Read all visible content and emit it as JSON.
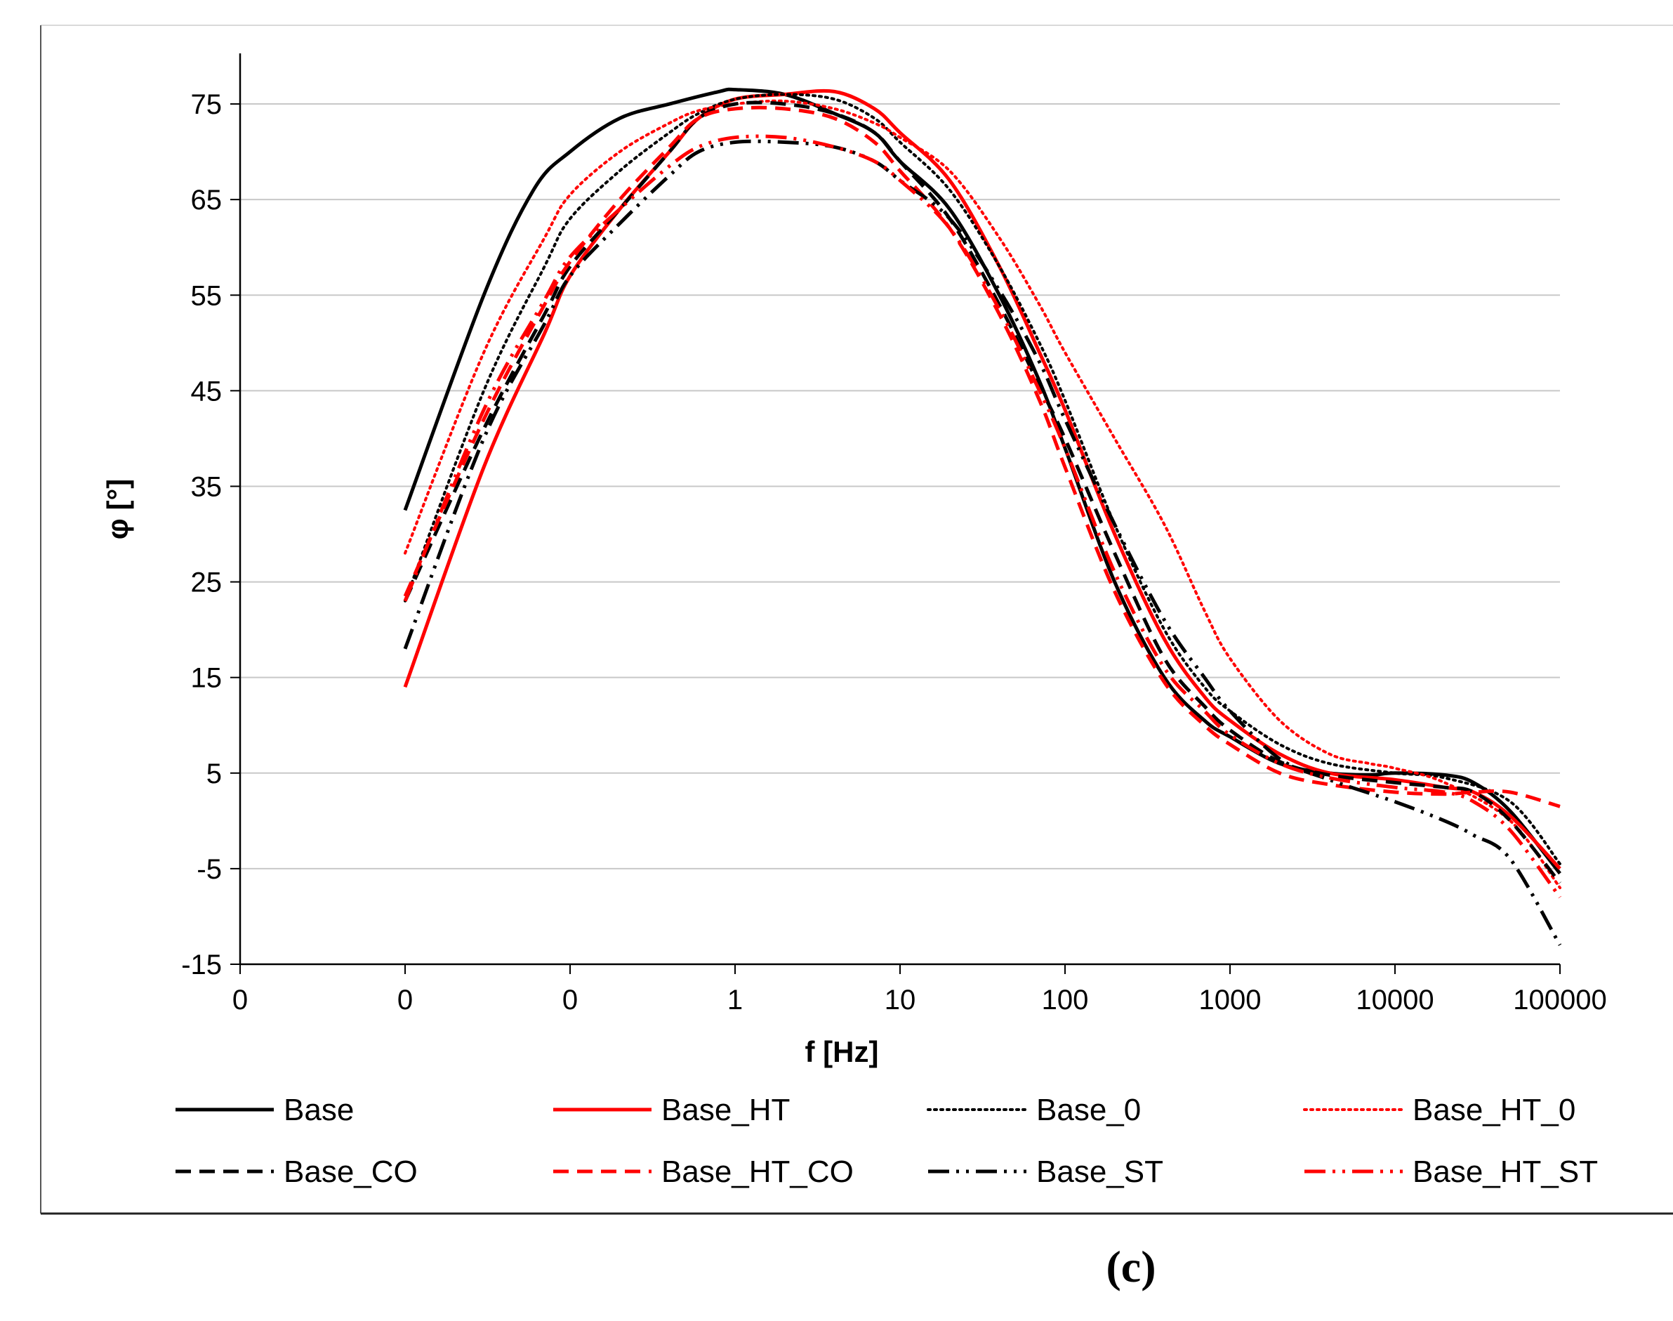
{
  "chart_data": {
    "type": "line",
    "title": "",
    "xlabel": "f [Hz]",
    "ylabel": "φ [°]",
    "x_scale": "log",
    "x_tick_labels": [
      "0",
      "0",
      "0",
      "1",
      "10",
      "100",
      "1000",
      "10000",
      "100000"
    ],
    "y_ticks": [
      75,
      65,
      55,
      45,
      35,
      25,
      15,
      5,
      -5,
      -15
    ],
    "ylim": [
      -15,
      80
    ],
    "grid": "horizontal",
    "legend_position": "bottom",
    "caption": "(c)",
    "series": [
      {
        "name": "Base",
        "color": "#000000",
        "style": "solid",
        "points": [
          [
            0.01,
            32.5
          ],
          [
            0.03,
            55
          ],
          [
            0.06,
            66
          ],
          [
            0.1,
            70
          ],
          [
            0.2,
            73.5
          ],
          [
            0.4,
            75
          ],
          [
            0.8,
            76.3
          ],
          [
            1,
            76.5
          ],
          [
            2,
            76
          ],
          [
            4,
            74
          ],
          [
            7,
            72
          ],
          [
            10,
            69
          ],
          [
            20,
            64
          ],
          [
            40,
            55
          ],
          [
            70,
            46
          ],
          [
            100,
            39
          ],
          [
            200,
            25
          ],
          [
            400,
            15
          ],
          [
            700,
            10.5
          ],
          [
            1000,
            8.8
          ],
          [
            2000,
            6
          ],
          [
            4000,
            5
          ],
          [
            7000,
            4.8
          ],
          [
            10000,
            5
          ],
          [
            20000,
            4.8
          ],
          [
            30000,
            4
          ],
          [
            50000,
            1
          ],
          [
            100000,
            -5.5
          ]
        ]
      },
      {
        "name": "Base_HT",
        "color": "#ff0000",
        "style": "solid",
        "points": [
          [
            0.01,
            14
          ],
          [
            0.03,
            37
          ],
          [
            0.07,
            51
          ],
          [
            0.1,
            57
          ],
          [
            0.2,
            64
          ],
          [
            0.4,
            70
          ],
          [
            0.6,
            73.5
          ],
          [
            1,
            75.5
          ],
          [
            2,
            76
          ],
          [
            4,
            76.3
          ],
          [
            7,
            74.5
          ],
          [
            10,
            72
          ],
          [
            20,
            67
          ],
          [
            40,
            58
          ],
          [
            70,
            49
          ],
          [
            100,
            43
          ],
          [
            200,
            30
          ],
          [
            400,
            19
          ],
          [
            700,
            13
          ],
          [
            1000,
            10.5
          ],
          [
            2000,
            7
          ],
          [
            4000,
            5
          ],
          [
            10000,
            4.3
          ],
          [
            20000,
            3.5
          ],
          [
            30000,
            3
          ],
          [
            50000,
            0.5
          ],
          [
            100000,
            -5
          ]
        ]
      },
      {
        "name": "Base_0",
        "color": "#000000",
        "style": "dotted",
        "points": [
          [
            0.01,
            23
          ],
          [
            0.03,
            45
          ],
          [
            0.07,
            58
          ],
          [
            0.1,
            63
          ],
          [
            0.2,
            68
          ],
          [
            0.4,
            72
          ],
          [
            0.6,
            74
          ],
          [
            1,
            75.5
          ],
          [
            2,
            76
          ],
          [
            4,
            75.5
          ],
          [
            7,
            73.5
          ],
          [
            10,
            71
          ],
          [
            20,
            66
          ],
          [
            40,
            58
          ],
          [
            70,
            50
          ],
          [
            100,
            44
          ],
          [
            200,
            31
          ],
          [
            400,
            20
          ],
          [
            700,
            14
          ],
          [
            1000,
            11.5
          ],
          [
            2000,
            8
          ],
          [
            4000,
            6
          ],
          [
            10000,
            5
          ],
          [
            20000,
            4.5
          ],
          [
            50000,
            2
          ],
          [
            100000,
            -4.5
          ]
        ]
      },
      {
        "name": "Base_HT_0",
        "color": "#ff0000",
        "style": "dotted",
        "points": [
          [
            0.01,
            28
          ],
          [
            0.03,
            49
          ],
          [
            0.07,
            61
          ],
          [
            0.1,
            65.5
          ],
          [
            0.2,
            70
          ],
          [
            0.4,
            73
          ],
          [
            0.6,
            74.3
          ],
          [
            1,
            75
          ],
          [
            2,
            75.3
          ],
          [
            4,
            74.5
          ],
          [
            7,
            73
          ],
          [
            10,
            71.5
          ],
          [
            20,
            68
          ],
          [
            40,
            61
          ],
          [
            70,
            54
          ],
          [
            100,
            49
          ],
          [
            200,
            40
          ],
          [
            400,
            31
          ],
          [
            700,
            22
          ],
          [
            1000,
            17
          ],
          [
            2000,
            10.5
          ],
          [
            4000,
            7
          ],
          [
            7000,
            6
          ],
          [
            10000,
            5.5
          ],
          [
            20000,
            4
          ],
          [
            50000,
            0
          ],
          [
            100000,
            -7
          ]
        ]
      },
      {
        "name": "Base_CO",
        "color": "#000000",
        "style": "dashed",
        "points": [
          [
            0.01,
            23
          ],
          [
            0.03,
            41
          ],
          [
            0.07,
            53
          ],
          [
            0.1,
            58
          ],
          [
            0.2,
            64
          ],
          [
            0.4,
            70
          ],
          [
            0.6,
            73.5
          ],
          [
            1,
            75
          ],
          [
            2,
            75
          ],
          [
            4,
            74
          ],
          [
            7,
            72
          ],
          [
            10,
            69
          ],
          [
            20,
            63
          ],
          [
            40,
            54
          ],
          [
            70,
            45.5
          ],
          [
            100,
            40
          ],
          [
            200,
            28
          ],
          [
            400,
            17
          ],
          [
            700,
            12
          ],
          [
            1000,
            9.5
          ],
          [
            2000,
            6.2
          ],
          [
            4000,
            4.8
          ],
          [
            10000,
            4
          ],
          [
            20000,
            3.5
          ],
          [
            30000,
            3
          ],
          [
            50000,
            0
          ],
          [
            100000,
            -6.5
          ]
        ]
      },
      {
        "name": "Base_HT_CO",
        "color": "#ff0000",
        "style": "dashed",
        "points": [
          [
            0.01,
            23.5
          ],
          [
            0.03,
            42
          ],
          [
            0.07,
            54
          ],
          [
            0.1,
            58.5
          ],
          [
            0.2,
            65
          ],
          [
            0.4,
            70.5
          ],
          [
            0.6,
            73.5
          ],
          [
            1,
            74.5
          ],
          [
            2,
            74.5
          ],
          [
            4,
            73.5
          ],
          [
            7,
            71
          ],
          [
            10,
            68
          ],
          [
            20,
            62
          ],
          [
            40,
            53
          ],
          [
            70,
            44
          ],
          [
            100,
            37
          ],
          [
            200,
            24
          ],
          [
            400,
            14.5
          ],
          [
            700,
            10
          ],
          [
            1000,
            8
          ],
          [
            2000,
            5
          ],
          [
            4000,
            3.8
          ],
          [
            10000,
            3
          ],
          [
            20000,
            2.8
          ],
          [
            30000,
            3
          ],
          [
            50000,
            3
          ],
          [
            100000,
            1.5
          ]
        ]
      },
      {
        "name": "Base_ST",
        "color": "#000000",
        "style": "dashdot",
        "points": [
          [
            0.01,
            18
          ],
          [
            0.03,
            40
          ],
          [
            0.07,
            52
          ],
          [
            0.1,
            57
          ],
          [
            0.2,
            62.5
          ],
          [
            0.4,
            67.5
          ],
          [
            0.6,
            70
          ],
          [
            1,
            71
          ],
          [
            2,
            71
          ],
          [
            4,
            70.5
          ],
          [
            7,
            69
          ],
          [
            10,
            67
          ],
          [
            20,
            63
          ],
          [
            40,
            55.5
          ],
          [
            70,
            48
          ],
          [
            100,
            42
          ],
          [
            200,
            31
          ],
          [
            400,
            21
          ],
          [
            700,
            15
          ],
          [
            1000,
            11.5
          ],
          [
            2000,
            6.5
          ],
          [
            4000,
            4.3
          ],
          [
            10000,
            2
          ],
          [
            20000,
            0
          ],
          [
            30000,
            -1.5
          ],
          [
            50000,
            -4
          ],
          [
            100000,
            -13
          ]
        ]
      },
      {
        "name": "Base_HT_ST",
        "color": "#ff0000",
        "style": "dashdot",
        "points": [
          [
            0.01,
            23
          ],
          [
            0.03,
            43
          ],
          [
            0.07,
            54.5
          ],
          [
            0.1,
            59
          ],
          [
            0.2,
            64
          ],
          [
            0.4,
            68.5
          ],
          [
            0.6,
            70.5
          ],
          [
            1,
            71.5
          ],
          [
            2,
            71.5
          ],
          [
            4,
            70.5
          ],
          [
            7,
            69
          ],
          [
            10,
            67
          ],
          [
            20,
            62
          ],
          [
            40,
            53.5
          ],
          [
            70,
            45
          ],
          [
            100,
            39
          ],
          [
            200,
            26
          ],
          [
            400,
            16
          ],
          [
            700,
            11.5
          ],
          [
            1000,
            9
          ],
          [
            2000,
            6
          ],
          [
            4000,
            4.5
          ],
          [
            10000,
            3.5
          ],
          [
            20000,
            3
          ],
          [
            30000,
            2
          ],
          [
            50000,
            -1
          ],
          [
            100000,
            -8
          ]
        ]
      }
    ]
  }
}
